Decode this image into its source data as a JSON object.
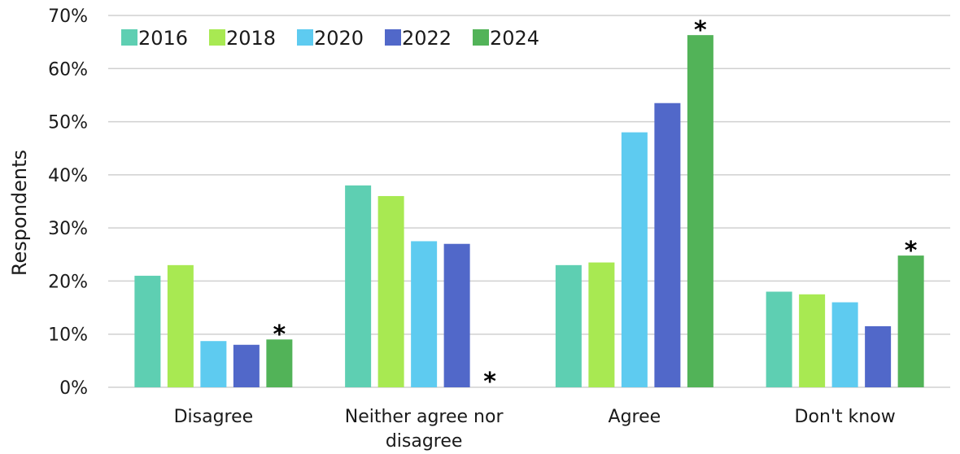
{
  "chart_data": {
    "type": "bar",
    "categories": [
      [
        "Disagree"
      ],
      [
        "Neither agree nor",
        "disagree"
      ],
      [
        "Agree"
      ],
      [
        "Don't know"
      ]
    ],
    "series": [
      {
        "name": "2016",
        "color": "#5ecfb2",
        "values": [
          21,
          38,
          23,
          18
        ]
      },
      {
        "name": "2018",
        "color": "#a8e952",
        "values": [
          23,
          36,
          23.5,
          17.5
        ]
      },
      {
        "name": "2020",
        "color": "#5ecbf0",
        "values": [
          8.7,
          27.5,
          48,
          16
        ]
      },
      {
        "name": "2022",
        "color": "#5168c9",
        "values": [
          8,
          27,
          53.5,
          11.5
        ]
      },
      {
        "name": "2024",
        "color": "#52b358",
        "values": [
          9,
          0,
          66.3,
          24.8
        ]
      }
    ],
    "annotations": [
      {
        "series": "2024",
        "category_index": 0,
        "text": "*"
      },
      {
        "series": "2024",
        "category_index": 1,
        "text": "*"
      },
      {
        "series": "2024",
        "category_index": 2,
        "text": "*"
      },
      {
        "series": "2024",
        "category_index": 3,
        "text": "*"
      }
    ],
    "yticks": [
      "0%",
      "10%",
      "20%",
      "30%",
      "40%",
      "50%",
      "60%",
      "70%"
    ],
    "ylim": [
      0,
      70
    ],
    "xlabel": "",
    "ylabel": "Respondents",
    "grid": true,
    "legend_position": "top-left"
  }
}
